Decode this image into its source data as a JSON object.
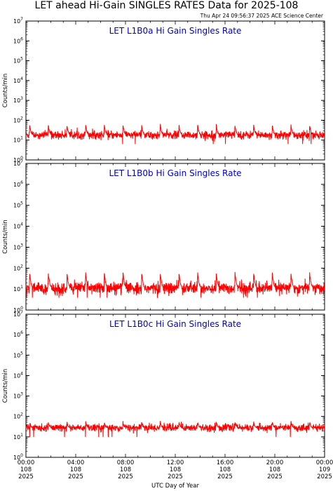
{
  "title": "LET ahead Hi-Gain SINGLES RATES Data for 2025-108",
  "timestamp": "Thu Apr 24 09:56:37 2025 ACE Science Center",
  "colors": {
    "series": "#ff0000",
    "panel_title": "#0000cc",
    "axes": "#000000"
  },
  "chart_data": [
    {
      "type": "line",
      "title": "LET L1B0a Hi Gain Singles Rate",
      "ylabel": "Counts/min",
      "yscale": "log",
      "ylim": [
        1,
        10000000
      ],
      "yticks": [
        "10^0",
        "10^1",
        "10^2",
        "10^3",
        "10^4",
        "10^5",
        "10^6",
        "10^7"
      ],
      "xlim": [
        "2025-108 00:00",
        "2025-109 00:00"
      ],
      "baseline": 18,
      "noise": 0.1,
      "spike_period_hours": 1.5,
      "spike_peak": 60,
      "series": [
        {
          "color": "#ff0000"
        }
      ]
    },
    {
      "type": "line",
      "title": "LET L1B0b Hi Gain Singles Rate",
      "ylabel": "Counts/min",
      "yscale": "log",
      "ylim": [
        1,
        10000000
      ],
      "yticks": [
        "10^0",
        "10^1",
        "10^2",
        "10^3",
        "10^4",
        "10^5",
        "10^6",
        "10^7"
      ],
      "xlim": [
        "2025-108 00:00",
        "2025-109 00:00"
      ],
      "baseline": 11,
      "noise": 0.14,
      "spike_period_hours": 1.5,
      "spike_peak": 60,
      "series": [
        {
          "color": "#ff0000"
        }
      ]
    },
    {
      "type": "line",
      "title": "LET L1B0c Hi Gain Singles Rate",
      "ylabel": "Counts/min",
      "yscale": "log",
      "ylim": [
        1,
        10000000
      ],
      "yticks": [
        "10^0",
        "10^1",
        "10^2",
        "10^3",
        "10^4",
        "10^5",
        "10^6",
        "10^7"
      ],
      "xlim": [
        "2025-108 00:00",
        "2025-109 00:00"
      ],
      "baseline": 28,
      "noise": 0.09,
      "spike_period_hours": 1.5,
      "spike_peak": 55,
      "series": [
        {
          "color": "#ff0000"
        }
      ]
    }
  ],
  "x_axis": {
    "label": "UTC Day of Year",
    "ticks": [
      {
        "time": "00:00",
        "day": "108",
        "year": "2025"
      },
      {
        "time": "04:00",
        "day": "108",
        "year": "2025"
      },
      {
        "time": "08:00",
        "day": "108",
        "year": "2025"
      },
      {
        "time": "12:00",
        "day": "108",
        "year": "2025"
      },
      {
        "time": "16:00",
        "day": "108",
        "year": "2025"
      },
      {
        "time": "20:00",
        "day": "108",
        "year": "2025"
      },
      {
        "time": "00:00",
        "day": "109",
        "year": "2025"
      }
    ]
  }
}
